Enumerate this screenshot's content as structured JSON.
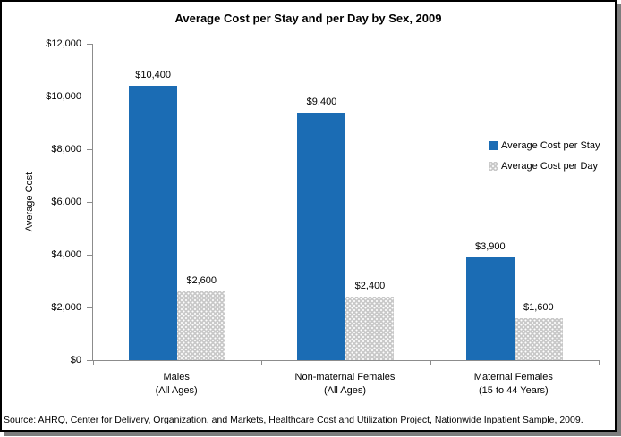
{
  "chart_data": {
    "type": "bar",
    "title": "Average Cost per Stay and per Day by Sex, 2009",
    "categories": [
      [
        "Males",
        "(All Ages)"
      ],
      [
        "Non-maternal Females",
        "(All Ages)"
      ],
      [
        "Maternal Females",
        "(15 to 44 Years)"
      ]
    ],
    "series": [
      {
        "name": "Average Cost per Stay",
        "color": "#1B6CB4",
        "pattern": "solid",
        "values": [
          10400,
          9400,
          3900
        ],
        "data_labels": [
          "$10,400",
          "$9,400",
          "$3,900"
        ]
      },
      {
        "name": "Average Cost per Day",
        "color": "#C9C9C9",
        "pattern": "dots",
        "values": [
          2600,
          2400,
          1600
        ],
        "data_labels": [
          "$2,600",
          "$2,400",
          "$1,600"
        ]
      }
    ],
    "xlabel": "",
    "ylabel": "Average Cost",
    "ylim": [
      0,
      12000
    ],
    "ytick_step": 2000,
    "yticks": [
      "$0",
      "$2,000",
      "$4,000",
      "$6,000",
      "$8,000",
      "$10,000",
      "$12,000"
    ],
    "grid": false,
    "legend_position": "right"
  },
  "source_note": "Source: AHRQ, Center for Delivery, Organization, and Markets, Healthcare Cost and Utilization Project, Nationwide Inpatient Sample, 2009."
}
